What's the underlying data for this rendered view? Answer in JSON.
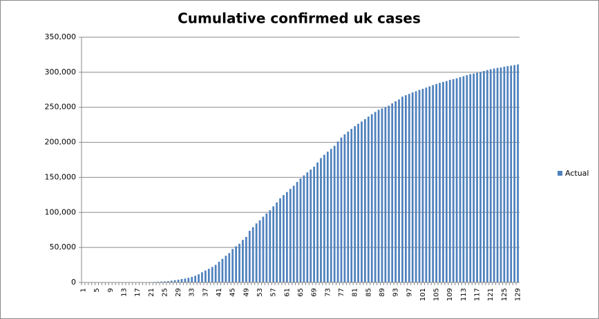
{
  "chart_data": {
    "type": "bar",
    "title": "Cumulative confirmed uk cases",
    "series": [
      {
        "name": "Actual",
        "color": "#4f81bd",
        "values": [
          9,
          13,
          13,
          13,
          13,
          13,
          13,
          19,
          23,
          35,
          40,
          51,
          85,
          115,
          163,
          206,
          273,
          321,
          373,
          456,
          590,
          797,
          1061,
          1391,
          1543,
          1950,
          2626,
          3269,
          3983,
          5018,
          5683,
          6650,
          8077,
          9529,
          11658,
          14543,
          17089,
          19522,
          22141,
          25150,
          29474,
          33718,
          38168,
          41903,
          47806,
          51608,
          55242,
          60733,
          65077,
          73758,
          78991,
          84279,
          88621,
          93873,
          98476,
          103093,
          108692,
          114217,
          120067,
          124743,
          129044,
          133495,
          138078,
          143464,
          148377,
          152840,
          157149,
          161145,
          165221,
          171253,
          177454,
          182260,
          186599,
          190584,
          194990,
          201101,
          206715,
          211364,
          215260,
          219183,
          223060,
          226463,
          229705,
          233151,
          236711,
          240161,
          243303,
          246406,
          248293,
          250138,
          252246,
          255544,
          258504,
          261184,
          265227,
          267240,
          269127,
          271222,
          272826,
          274762,
          276332,
          278063,
          279856,
          281661,
          283311,
          284868,
          286194,
          287399,
          289140,
          290143,
          291409,
          292950,
          294375,
          295889,
          297342,
          298136,
          299251,
          300469,
          301815,
          303110,
          304331,
          305289,
          306210,
          306862,
          307980,
          308800,
          309400,
          310250,
          311151
        ]
      }
    ],
    "categories": [
      1,
      null,
      null,
      null,
      5,
      null,
      null,
      null,
      9,
      null,
      null,
      null,
      13,
      null,
      null,
      null,
      17,
      null,
      null,
      null,
      21,
      null,
      null,
      null,
      25,
      null,
      null,
      null,
      29,
      null,
      null,
      null,
      33,
      null,
      null,
      null,
      37,
      null,
      null,
      null,
      41,
      null,
      null,
      null,
      45,
      null,
      null,
      null,
      49,
      null,
      null,
      null,
      53,
      null,
      null,
      null,
      57,
      null,
      null,
      null,
      61,
      null,
      null,
      null,
      65,
      null,
      null,
      null,
      69,
      null,
      null,
      null,
      73,
      null,
      null,
      null,
      77,
      null,
      null,
      null,
      81,
      null,
      null,
      null,
      85,
      null,
      null,
      null,
      89,
      null,
      null,
      null,
      93,
      null,
      null,
      null,
      97,
      null,
      null,
      null,
      101,
      null,
      null,
      null,
      105,
      null,
      null,
      null,
      109,
      null,
      null,
      null,
      113,
      null,
      null,
      null,
      117,
      null,
      null,
      null,
      121,
      null,
      null,
      null,
      125,
      null,
      null,
      null,
      129
    ],
    "ylim": [
      0,
      350000
    ],
    "yticks": [
      0,
      {
        "value": 50000,
        "label": "50,000"
      },
      {
        "value": 100000,
        "label": "100,000"
      },
      {
        "value": 150000,
        "label": "150,000"
      },
      {
        "value": 200000,
        "label": "200,000"
      },
      {
        "value": 250000,
        "label": "250,000"
      },
      {
        "value": 300000,
        "label": "300,000"
      },
      {
        "value": 350000,
        "label": "350,000"
      }
    ],
    "grid": true,
    "legend": "right"
  }
}
